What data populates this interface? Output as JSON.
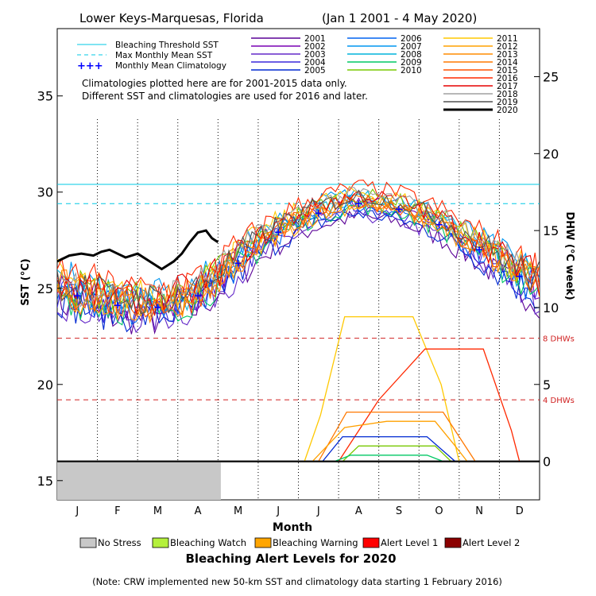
{
  "title": {
    "site": "Lower Keys-Marquesas, Florida",
    "range": "(Jan 1 2001 - 4 May 2020)"
  },
  "colors": {
    "threshold": "#00c8e6",
    "mmm": "#00c8e6",
    "climatology": "#0000ff",
    "dhw_ref": "#d02020",
    "no_stress": "#c8c8c8",
    "watch": "#b4f03c",
    "warning": "#ffa500",
    "alert1": "#ff0000",
    "alert2": "#8b0000"
  },
  "legend_lines": [
    {
      "label": "Bleaching Threshold SST",
      "style": "solid"
    },
    {
      "label": "Max Monthly Mean SST",
      "style": "dashed"
    },
    {
      "label": "Monthly Mean Climatology",
      "style": "cross"
    }
  ],
  "notes": {
    "line1": "Climatologies plotted here are for 2001-2015 data only.",
    "line2": "Different SST and climatologies are used for 2016 and later.",
    "footer": "(Note: CRW implemented new 50-km SST and climatology data starting 1 February 2016)"
  },
  "alert_title": "Bleaching Alert Levels for 2020",
  "alert_levels": [
    {
      "label": "No Stress",
      "color": "#c8c8c8"
    },
    {
      "label": "Bleaching Watch",
      "color": "#b4f03c"
    },
    {
      "label": "Bleaching Warning",
      "color": "#ffa500"
    },
    {
      "label": "Alert Level 1",
      "color": "#ff0000"
    },
    {
      "label": "Alert Level 2",
      "color": "#8b0000"
    }
  ],
  "chart_data": {
    "type": "line",
    "xlabel": "Month",
    "ylabel_left": "SST (°C)",
    "ylabel_right": "DHW (°C week)",
    "months": [
      "J",
      "F",
      "M",
      "A",
      "M",
      "J",
      "J",
      "A",
      "S",
      "O",
      "N",
      "D"
    ],
    "ylim_left": [
      14,
      38.5
    ],
    "yticks_left": [
      15,
      20,
      25,
      30,
      35
    ],
    "ylim_right": [
      -2.5,
      28.125
    ],
    "yticks_right": [
      0,
      5,
      10,
      15,
      20,
      25
    ],
    "bleaching_threshold_sst": 30.4,
    "max_monthly_mean_sst": 29.4,
    "dhw_refs": [
      {
        "value": 8,
        "label": "8 DHWs"
      },
      {
        "value": 4,
        "label": "4 DHWs"
      }
    ],
    "year_series": [
      {
        "name": "2001",
        "color": "#5a0096"
      },
      {
        "name": "2002",
        "color": "#7800b4"
      },
      {
        "name": "2003",
        "color": "#6428c8"
      },
      {
        "name": "2004",
        "color": "#3c28dc"
      },
      {
        "name": "2005",
        "color": "#0028d2"
      },
      {
        "name": "2006",
        "color": "#0064f0"
      },
      {
        "name": "2007",
        "color": "#0096f0"
      },
      {
        "name": "2008",
        "color": "#00b4dc"
      },
      {
        "name": "2009",
        "color": "#00c864"
      },
      {
        "name": "2010",
        "color": "#78c800"
      },
      {
        "name": "2011",
        "color": "#ffc800"
      },
      {
        "name": "2012",
        "color": "#ffa000"
      },
      {
        "name": "2013",
        "color": "#ff8c00"
      },
      {
        "name": "2014",
        "color": "#ff7800"
      },
      {
        "name": "2015",
        "color": "#ff5000"
      },
      {
        "name": "2016",
        "color": "#ff2800"
      },
      {
        "name": "2017",
        "color": "#e60000"
      },
      {
        "name": "2018",
        "color": "#a0a0a0"
      },
      {
        "name": "2019",
        "color": "#505050"
      },
      {
        "name": "2020",
        "color": "#000000"
      }
    ],
    "climatology_points": [
      {
        "month": 0.5,
        "sst": 24.6
      },
      {
        "month": 1.5,
        "sst": 24.1
      },
      {
        "month": 2.5,
        "sst": 24.0
      },
      {
        "month": 3.5,
        "sst": 24.6
      },
      {
        "month": 4.5,
        "sst": 26.3
      },
      {
        "month": 5.5,
        "sst": 27.9
      },
      {
        "month": 6.5,
        "sst": 28.9
      },
      {
        "month": 7.5,
        "sst": 29.4
      },
      {
        "month": 8.5,
        "sst": 29.1
      },
      {
        "month": 9.5,
        "sst": 28.3
      },
      {
        "month": 10.5,
        "sst": 27.0
      },
      {
        "month": 11.5,
        "sst": 25.6
      }
    ],
    "sst_2020": [
      [
        0.0,
        26.4
      ],
      [
        0.3,
        26.7
      ],
      [
        0.6,
        26.8
      ],
      [
        0.9,
        26.7
      ],
      [
        1.1,
        26.9
      ],
      [
        1.3,
        27.0
      ],
      [
        1.5,
        26.8
      ],
      [
        1.7,
        26.6
      ],
      [
        2.0,
        26.8
      ],
      [
        2.3,
        26.4
      ],
      [
        2.6,
        26.0
      ],
      [
        2.9,
        26.4
      ],
      [
        3.1,
        26.8
      ],
      [
        3.3,
        27.4
      ],
      [
        3.5,
        27.9
      ],
      [
        3.7,
        28.0
      ],
      [
        3.85,
        27.6
      ],
      [
        4.0,
        27.4
      ]
    ],
    "sst_envelope": {
      "mean": [
        24.6,
        24.1,
        24.0,
        24.6,
        26.3,
        27.9,
        28.9,
        29.4,
        29.1,
        28.3,
        27.0,
        25.6
      ],
      "spread": [
        1.8,
        1.5,
        1.5,
        1.6,
        1.4,
        1.0,
        0.8,
        0.7,
        0.7,
        0.9,
        1.2,
        1.6
      ]
    },
    "dhw_curves": [
      {
        "color": "#ffc800",
        "pts": [
          [
            6.15,
            0
          ],
          [
            6.55,
            3
          ],
          [
            7.15,
            9.4
          ],
          [
            8.85,
            9.4
          ],
          [
            9.55,
            5
          ],
          [
            10.0,
            0
          ]
        ]
      },
      {
        "color": "#ff2800",
        "pts": [
          [
            7.0,
            0
          ],
          [
            8.0,
            4
          ],
          [
            9.15,
            7.3
          ],
          [
            10.6,
            7.3
          ],
          [
            11.3,
            2
          ],
          [
            11.5,
            0
          ]
        ]
      },
      {
        "color": "#ff7800",
        "pts": [
          [
            6.5,
            0
          ],
          [
            7.2,
            3.2
          ],
          [
            9.6,
            3.2
          ],
          [
            10.4,
            0
          ]
        ]
      },
      {
        "color": "#ffa000",
        "pts": [
          [
            6.35,
            0
          ],
          [
            7.15,
            2.2
          ],
          [
            8.2,
            2.6
          ],
          [
            9.4,
            2.6
          ],
          [
            9.9,
            1
          ],
          [
            10.2,
            0
          ]
        ]
      },
      {
        "color": "#0028d2",
        "pts": [
          [
            6.6,
            0
          ],
          [
            7.1,
            1.6
          ],
          [
            9.2,
            1.6
          ],
          [
            9.9,
            0
          ]
        ]
      },
      {
        "color": "#78c800",
        "pts": [
          [
            7.1,
            0
          ],
          [
            7.5,
            1
          ],
          [
            9.4,
            1
          ],
          [
            9.8,
            0
          ]
        ]
      },
      {
        "color": "#00c864",
        "pts": [
          [
            6.9,
            0
          ],
          [
            7.3,
            0.4
          ],
          [
            9.2,
            0.4
          ],
          [
            9.6,
            0
          ]
        ]
      }
    ]
  }
}
